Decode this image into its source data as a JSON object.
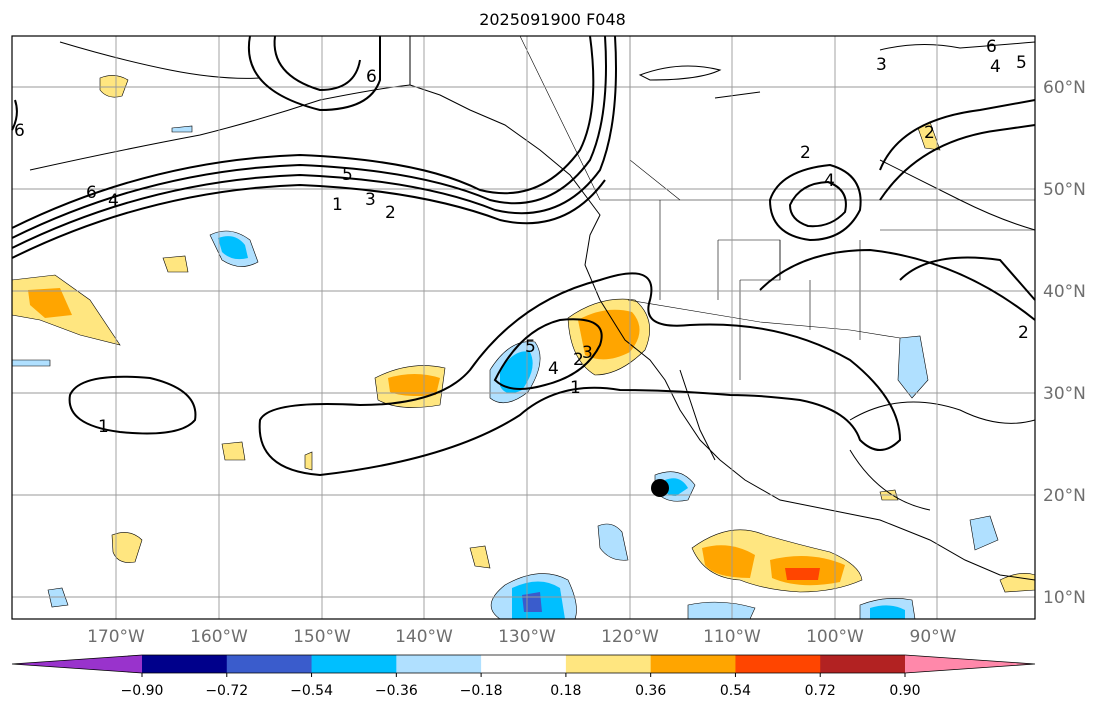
{
  "title": "2025091900 F048",
  "map": {
    "lon_labels": [
      "170°W",
      "160°W",
      "150°W",
      "140°W",
      "130°W",
      "120°W",
      "110°W",
      "100°W",
      "90°W"
    ],
    "lat_labels": [
      "10°N",
      "20°N",
      "30°N",
      "40°N",
      "50°N",
      "60°N"
    ],
    "contour_labels": [
      "6",
      "4",
      "5",
      "3",
      "2",
      "1",
      "6",
      "6",
      "3",
      "2",
      "4",
      "2",
      "6",
      "4",
      "5",
      "2",
      "1",
      "1",
      "2",
      "3",
      "4",
      "5"
    ],
    "marker": "storm-position-dot"
  },
  "colorbar": {
    "ticks": [
      "−0.90",
      "−0.72",
      "−0.54",
      "−0.36",
      "−0.18",
      "0.18",
      "0.36",
      "0.54",
      "0.72",
      "0.90"
    ],
    "colors": [
      "#9933cc",
      "#00008b",
      "#3a5ccc",
      "#00bfff",
      "#b0e0ff",
      "#ffffff",
      "#ffe680",
      "#ffa500",
      "#ff4500",
      "#b22222",
      "#ff88aa"
    ]
  }
}
